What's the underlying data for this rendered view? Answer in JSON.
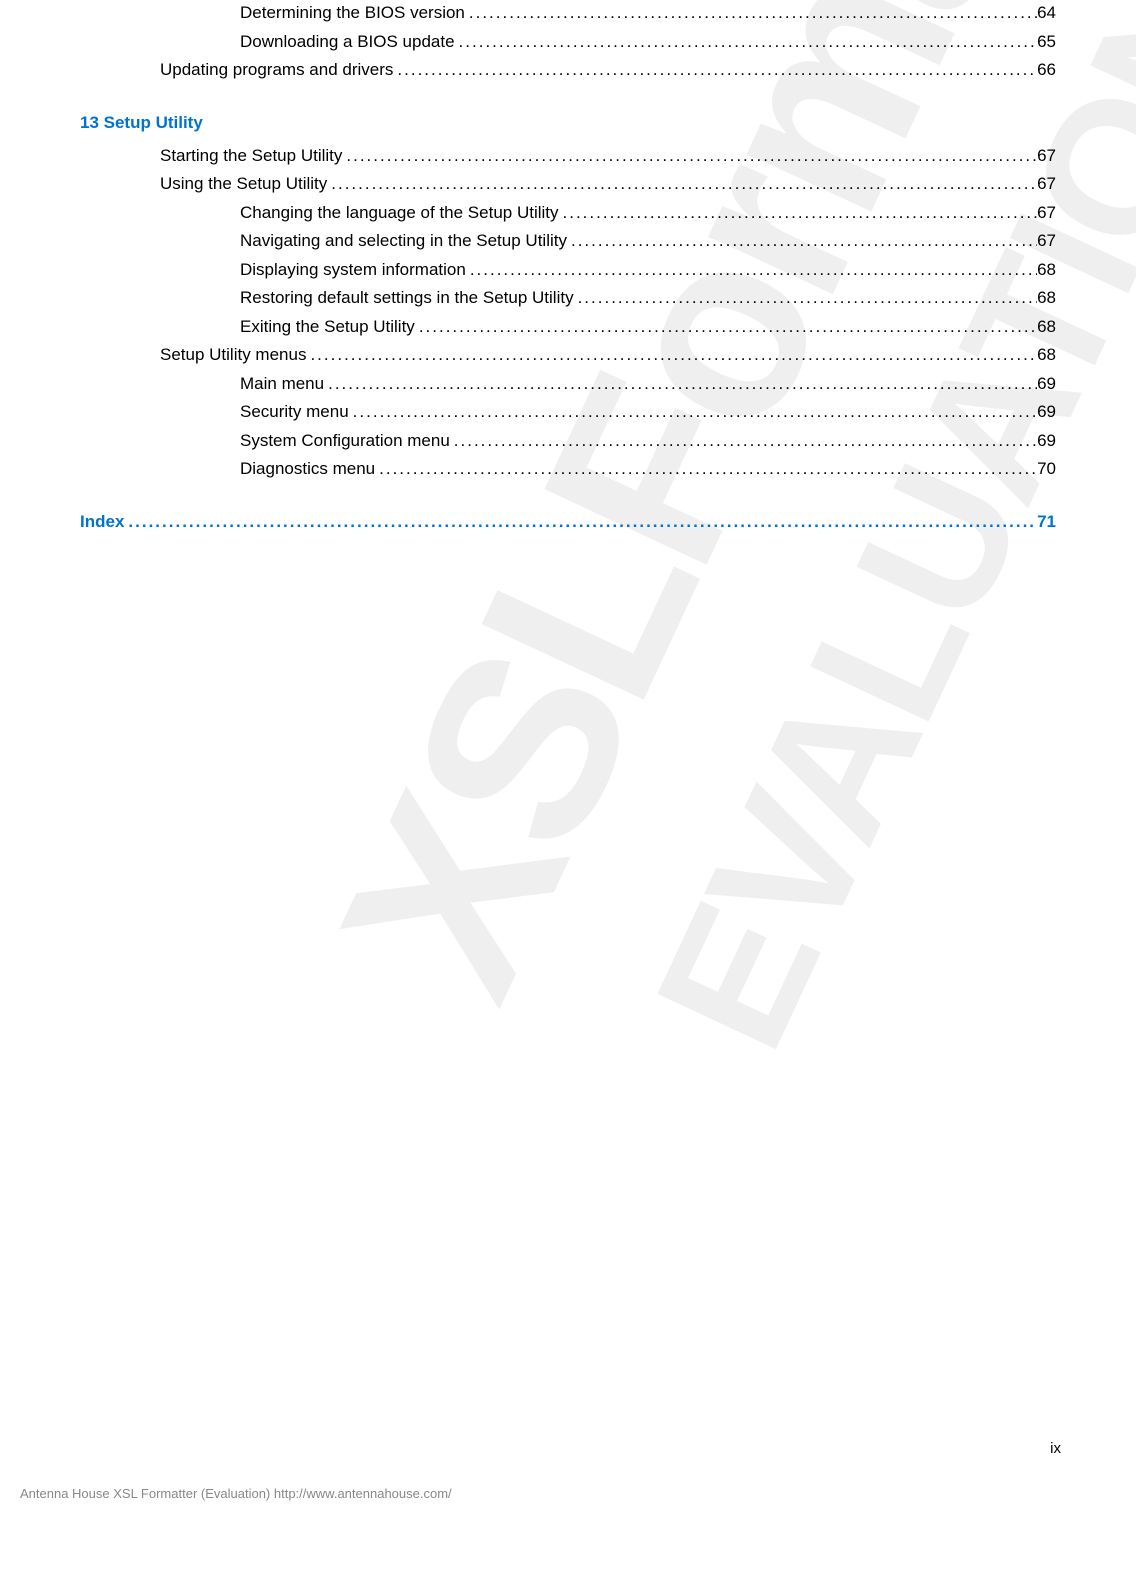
{
  "watermarks": {
    "wm1": "XSLFormatter",
    "wm2": "EVALUATION"
  },
  "toc_top": [
    {
      "text": "Determining the BIOS version",
      "page": "64",
      "indent": 2
    },
    {
      "text": "Downloading a BIOS update",
      "page": "65",
      "indent": 2
    },
    {
      "text": "Updating programs and drivers",
      "page": "66",
      "indent": 1
    }
  ],
  "heading1": "13  Setup Utility",
  "toc_chapter": [
    {
      "text": "Starting the Setup Utility",
      "page": "67",
      "indent": 1
    },
    {
      "text": "Using the Setup Utility",
      "page": "67",
      "indent": 1
    },
    {
      "text": "Changing the language of the Setup Utility",
      "page": "67",
      "indent": 2
    },
    {
      "text": "Navigating and selecting in the Setup Utility",
      "page": "67",
      "indent": 2
    },
    {
      "text": "Displaying system information",
      "page": "68",
      "indent": 2
    },
    {
      "text": "Restoring default settings in the Setup Utility",
      "page": "68",
      "indent": 2
    },
    {
      "text": "Exiting the Setup Utility",
      "page": "68",
      "indent": 2
    },
    {
      "text": "Setup Utility menus",
      "page": "68",
      "indent": 1
    },
    {
      "text": "Main menu",
      "page": "69",
      "indent": 2
    },
    {
      "text": "Security menu",
      "page": "69",
      "indent": 2
    },
    {
      "text": "System Configuration menu",
      "page": "69",
      "indent": 2
    },
    {
      "text": "Diagnostics menu",
      "page": "70",
      "indent": 2
    }
  ],
  "index": {
    "text": "Index",
    "page": "71"
  },
  "page_number": "ix",
  "footer": "Antenna House XSL Formatter (Evaluation)  http://www.antennahouse.com/",
  "colors": {
    "link": "#0073cf",
    "text": "#000000",
    "footer": "#888888"
  }
}
